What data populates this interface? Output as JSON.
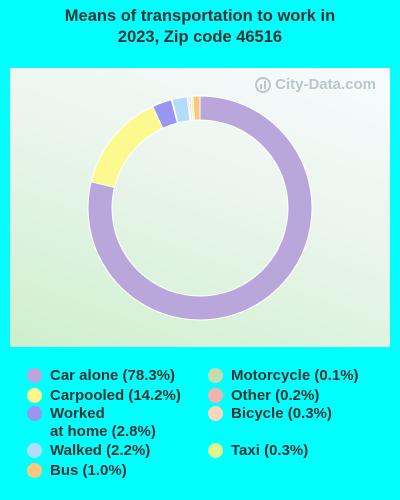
{
  "chart_data": {
    "type": "pie",
    "title_lines": [
      "Means of transportation to work in",
      "2023, Zip code 46516"
    ],
    "slices": [
      {
        "legend": "Car alone (78.3%)",
        "value": 78.3,
        "color": "#b9a6da"
      },
      {
        "legend": "Carpooled (14.2%)",
        "value": 14.2,
        "color": "#fcf98f"
      },
      {
        "legend": "Worked\nat home (2.8%)",
        "value": 2.8,
        "color": "#9a95f0"
      },
      {
        "legend": "Walked (2.2%)",
        "value": 2.2,
        "color": "#b3dcfb"
      },
      {
        "legend": "Bus (1.0%)",
        "value": 1.0,
        "color": "#fac77c"
      },
      {
        "legend": "Motorcycle (0.1%)",
        "value": 0.1,
        "color": "#c6dbb0"
      },
      {
        "legend": "Other (0.2%)",
        "value": 0.2,
        "color": "#f2b2ae"
      },
      {
        "legend": "Bicycle (0.3%)",
        "value": 0.3,
        "color": "#fad7b8"
      },
      {
        "legend": "Taxi (0.3%)",
        "value": 0.3,
        "color": "#dcf88c"
      }
    ],
    "donut": true,
    "legend_position": "bottom"
  },
  "watermark": "City-Data.com"
}
